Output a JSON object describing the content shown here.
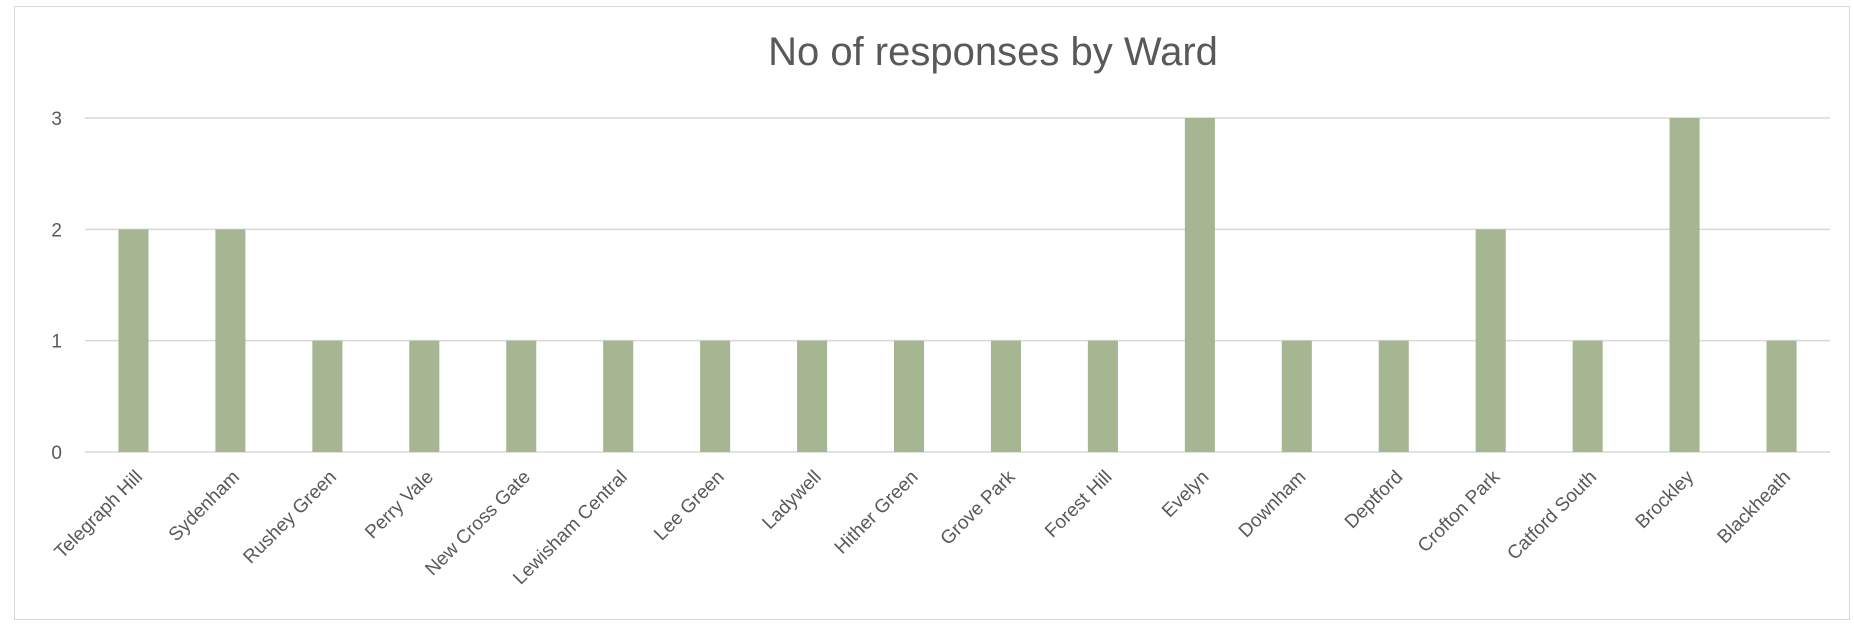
{
  "chart_data": {
    "type": "bar",
    "title": "No of responses by Ward",
    "xlabel": "",
    "ylabel": "",
    "ylim": [
      0,
      3
    ],
    "yticks": [
      0,
      1,
      2,
      3
    ],
    "grid": true,
    "legend": "none",
    "bar_color": "#a6b592",
    "categories": [
      "Telegraph Hill",
      "Sydenham",
      "Rushey Green",
      "Perry Vale",
      "New Cross Gate",
      "Lewisham Central",
      "Lee Green",
      "Ladywell",
      "Hither Green",
      "Grove Park",
      "Forest Hill",
      "Evelyn",
      "Downham",
      "Deptford",
      "Crofton Park",
      "Catford South",
      "Brockley",
      "Blackheath"
    ],
    "values": [
      2,
      2,
      1,
      1,
      1,
      1,
      1,
      1,
      1,
      1,
      1,
      3,
      1,
      1,
      2,
      1,
      3,
      1
    ]
  }
}
